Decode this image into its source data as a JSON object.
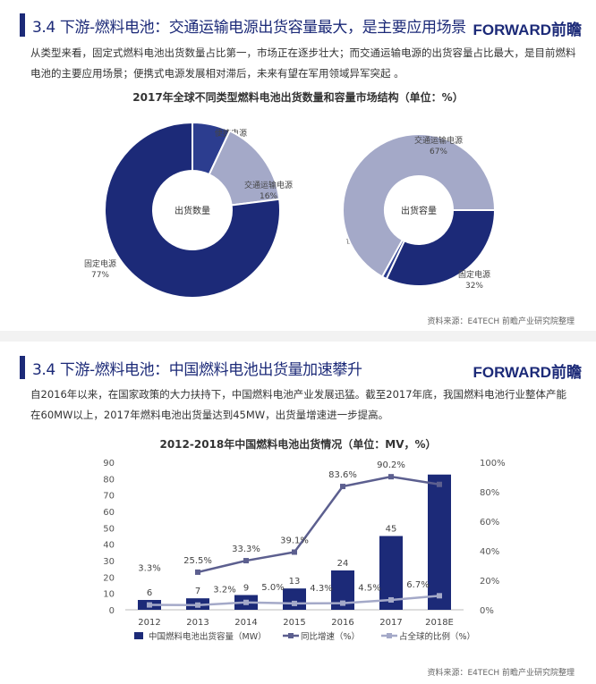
{
  "section1": {
    "title": "3.4 下游-燃料电池：交通运输电源出货容量最大，是主要应用场景",
    "logo": "FORWARD前瞻",
    "paragraph": "从类型来看，固定式燃料电池出货数量占比第一，市场正在逐步壮大；而交通运输电源的出货容量占比最大，是目前燃料电池的主要应用场景；便携式电源发展相对滞后，未来有望在军用领域异军突起 。",
    "source": "资料来源：E4TECH 前瞻产业研究院整理"
  },
  "section2": {
    "title": "3.4 下游-燃料电池：中国燃料电池出货量加速攀升",
    "logo": "FORWARD前瞻",
    "paragraph": "自2016年以来，在国家政策的大力扶持下，中国燃料电池产业发展迅猛。截至2017年底，我国燃料电池行业整体产能在60MW以上，2017年燃料电池出货量达到45MW，出货量增速进一步提高。",
    "source": "资料来源：E4TECH 前瞻产业研究院整理"
  },
  "chart_data": [
    {
      "type": "pie",
      "title": "2017年全球不同类型燃料电池出货数量和容量市场结构（单位：%）",
      "center_label": "出货数量",
      "slices": [
        {
          "label": "便捷电源",
          "value": 7,
          "color": "#2c3d8f"
        },
        {
          "label": "交通运输电源",
          "value": 16,
          "color": "#a4a9c8"
        },
        {
          "label": "固定电源",
          "value": 77,
          "color": "#1c2a78"
        }
      ]
    },
    {
      "type": "pie",
      "center_label": "出货容量",
      "slices": [
        {
          "label": "固定电源",
          "value": 32,
          "color": "#1c2a78"
        },
        {
          "label": "便捷电源",
          "value": 1,
          "color": "#2c3d8f"
        },
        {
          "label": "交通运输电源",
          "value": 67,
          "color": "#a4a9c8"
        }
      ]
    },
    {
      "type": "bar+line",
      "title": "2012-2018年中国燃料电池出货情况（单位：MV，%）",
      "categories": [
        "2012",
        "2013",
        "2014",
        "2015",
        "2016",
        "2017",
        "2018E"
      ],
      "ylim": [
        0,
        90
      ],
      "yticks": [
        0,
        10,
        20,
        30,
        40,
        50,
        60,
        70,
        80,
        90
      ],
      "y2lim": [
        0,
        100
      ],
      "y2ticks": [
        "0%",
        "20%",
        "40%",
        "60%",
        "80%",
        "100%"
      ],
      "legend_position": "bottom",
      "series": [
        {
          "name": "中国燃料电池出货容量（MW）",
          "type": "bar",
          "values": [
            6,
            7,
            9,
            13,
            24,
            45,
            82.5
          ],
          "labels": [
            "6",
            "7",
            "9",
            "13",
            "24",
            "45",
            ""
          ],
          "color": "#1c2a78"
        },
        {
          "name": "同比增速（%）",
          "type": "line",
          "axis": "right",
          "values": [
            null,
            25.5,
            33.3,
            39.1,
            83.6,
            90.2,
            85
          ],
          "labels": [
            "",
            "25.5%",
            "33.3%",
            "39.1%",
            "83.6%",
            "90.2%",
            ""
          ],
          "color": "#5c5f8f"
        },
        {
          "name": "占全球的比例（%）",
          "type": "line",
          "axis": "right",
          "values": [
            3.3,
            3.2,
            5.0,
            4.3,
            4.5,
            6.7,
            9.5
          ],
          "labels": [
            "3.3%",
            "3.2%",
            "5.0%",
            "4.3%",
            "4.5%",
            "6.7%",
            ""
          ],
          "color": "#a4a9c8"
        }
      ]
    }
  ]
}
